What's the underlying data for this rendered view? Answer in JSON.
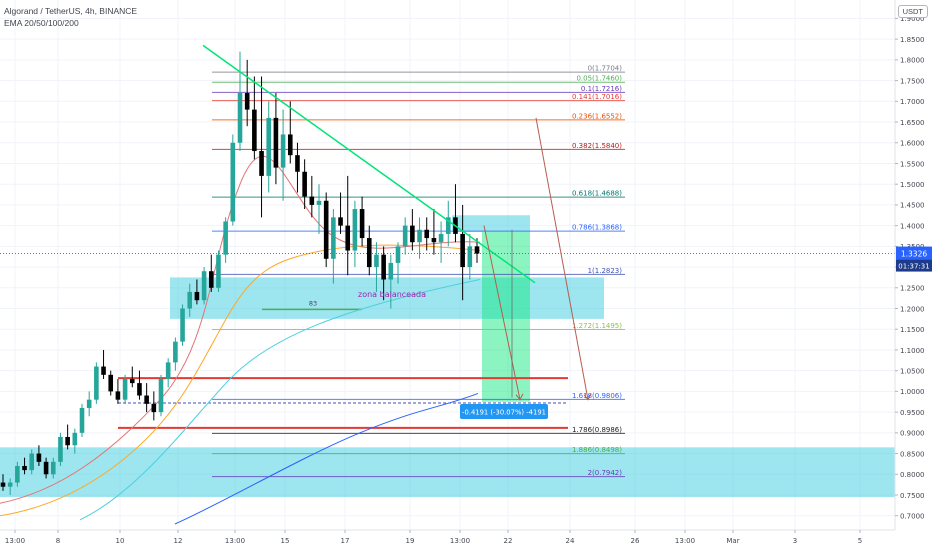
{
  "header": {
    "title": "Algorand / TetherUS, 4h, BINANCE",
    "indicator": "EMA 20/50/100/200",
    "currency": "USDT"
  },
  "chart_data": {
    "type": "candlestick",
    "title": "Algorand / TetherUS, 4h, BINANCE",
    "ylim": [
      0.68,
      1.93
    ],
    "y_ticks": [
      "1.9000",
      "1.8500",
      "1.8000",
      "1.7500",
      "1.7000",
      "1.6500",
      "1.6000",
      "1.5500",
      "1.5000",
      "1.4500",
      "1.4000",
      "1.3500",
      "1.3000",
      "1.2500",
      "1.2000",
      "1.1500",
      "1.1000",
      "1.0500",
      "1.0000",
      "0.9500",
      "0.9000",
      "0.8500",
      "0.8000",
      "0.7500",
      "0.7000"
    ],
    "x_ticks": [
      "13:00",
      "8",
      "10",
      "12",
      "13:00",
      "15",
      "17",
      "19",
      "13:00",
      "22",
      "24",
      "26",
      "13:00",
      "Mar",
      "3",
      "5"
    ],
    "price_label": "1.3326",
    "countdown_label": "01:37:31",
    "last_price": 1.3326,
    "fibonacci": [
      {
        "label": "0(1.7704)",
        "value": 1.7704,
        "color": "#787b86"
      },
      {
        "label": "0.05(1.7460)",
        "value": 1.746,
        "color": "#4caf50"
      },
      {
        "label": "0.1(1.7216)",
        "value": 1.7216,
        "color": "#673ab7"
      },
      {
        "label": "0.141(1.7016)",
        "value": 1.7016,
        "color": "#e53935"
      },
      {
        "label": "0.236(1.6552)",
        "value": 1.6552,
        "color": "#e65100"
      },
      {
        "label": "0.382(1.5840)",
        "value": 1.584,
        "color": "#b71c1c"
      },
      {
        "label": "0.618(1.4688)",
        "value": 1.4688,
        "color": "#00796b"
      },
      {
        "label": "0.786(1.3868)",
        "value": 1.3868,
        "color": "#2962ff"
      },
      {
        "label": "1(1.2823)",
        "value": 1.2823,
        "color": "#3f51b5"
      },
      {
        "label": "1.272(1.1495)",
        "value": 1.1495,
        "color": "#8bc34a"
      },
      {
        "label": "1.618(0.9806)",
        "value": 0.9806,
        "color": "#2962ff"
      },
      {
        "label": "1.786(0.8986)",
        "value": 0.8986,
        "color": "#212121"
      },
      {
        "label": "1.886(0.8498)",
        "value": 0.8498,
        "color": "#4caf50"
      },
      {
        "label": "2(0.7942)",
        "value": 0.7942,
        "color": "#673ab7"
      }
    ],
    "annotations": {
      "zone_label": "zona balanceada",
      "small_label": "83",
      "measure_label": "-0.4191 (-30.07%) -4191"
    },
    "candles": [
      [
        0.78,
        0.8,
        0.76,
        0.77
      ],
      [
        0.77,
        0.79,
        0.75,
        0.78
      ],
      [
        0.78,
        0.83,
        0.77,
        0.82
      ],
      [
        0.82,
        0.84,
        0.8,
        0.81
      ],
      [
        0.81,
        0.86,
        0.8,
        0.85
      ],
      [
        0.85,
        0.87,
        0.82,
        0.83
      ],
      [
        0.83,
        0.84,
        0.79,
        0.8
      ],
      [
        0.8,
        0.84,
        0.79,
        0.83
      ],
      [
        0.83,
        0.9,
        0.82,
        0.89
      ],
      [
        0.89,
        0.92,
        0.86,
        0.87
      ],
      [
        0.87,
        0.91,
        0.85,
        0.9
      ],
      [
        0.9,
        0.97,
        0.89,
        0.96
      ],
      [
        0.96,
        1.0,
        0.94,
        0.98
      ],
      [
        0.98,
        1.07,
        0.97,
        1.06
      ],
      [
        1.06,
        1.1,
        1.03,
        1.04
      ],
      [
        1.04,
        1.05,
        0.99,
        1.0
      ],
      [
        1.0,
        1.03,
        0.97,
        0.98
      ],
      [
        0.98,
        1.04,
        0.97,
        1.03
      ],
      [
        1.03,
        1.06,
        1.01,
        1.02
      ],
      [
        1.02,
        1.05,
        0.98,
        0.99
      ],
      [
        0.99,
        1.02,
        0.95,
        0.97
      ],
      [
        0.97,
        1.0,
        0.93,
        0.95
      ],
      [
        0.95,
        1.04,
        0.94,
        1.03
      ],
      [
        1.03,
        1.08,
        1.01,
        1.07
      ],
      [
        1.07,
        1.13,
        1.05,
        1.12
      ],
      [
        1.12,
        1.21,
        1.11,
        1.2
      ],
      [
        1.2,
        1.26,
        1.18,
        1.24
      ],
      [
        1.24,
        1.27,
        1.21,
        1.22
      ],
      [
        1.22,
        1.3,
        1.21,
        1.29
      ],
      [
        1.29,
        1.33,
        1.24,
        1.25
      ],
      [
        1.25,
        1.34,
        1.24,
        1.33
      ],
      [
        1.33,
        1.42,
        1.31,
        1.41
      ],
      [
        1.41,
        1.62,
        1.4,
        1.6
      ],
      [
        1.6,
        1.82,
        1.58,
        1.72
      ],
      [
        1.72,
        1.8,
        1.64,
        1.68
      ],
      [
        1.68,
        1.76,
        1.56,
        1.58
      ],
      [
        1.58,
        1.76,
        1.42,
        1.52
      ],
      [
        1.52,
        1.7,
        1.48,
        1.66
      ],
      [
        1.66,
        1.72,
        1.5,
        1.54
      ],
      [
        1.54,
        1.68,
        1.46,
        1.62
      ],
      [
        1.62,
        1.7,
        1.55,
        1.57
      ],
      [
        1.57,
        1.6,
        1.48,
        1.53
      ],
      [
        1.53,
        1.56,
        1.44,
        1.47
      ],
      [
        1.47,
        1.52,
        1.42,
        1.45
      ],
      [
        1.45,
        1.5,
        1.38,
        1.46
      ],
      [
        1.46,
        1.48,
        1.3,
        1.32
      ],
      [
        1.32,
        1.44,
        1.26,
        1.42
      ],
      [
        1.42,
        1.48,
        1.38,
        1.4
      ],
      [
        1.4,
        1.52,
        1.28,
        1.34
      ],
      [
        1.34,
        1.46,
        1.3,
        1.44
      ],
      [
        1.44,
        1.47,
        1.35,
        1.37
      ],
      [
        1.37,
        1.4,
        1.28,
        1.3
      ],
      [
        1.3,
        1.36,
        1.24,
        1.33
      ],
      [
        1.33,
        1.35,
        1.22,
        1.27
      ],
      [
        1.27,
        1.33,
        1.2,
        1.31
      ],
      [
        1.31,
        1.36,
        1.26,
        1.35
      ],
      [
        1.35,
        1.42,
        1.33,
        1.4
      ],
      [
        1.4,
        1.44,
        1.34,
        1.36
      ],
      [
        1.36,
        1.42,
        1.32,
        1.39
      ],
      [
        1.39,
        1.42,
        1.34,
        1.37
      ],
      [
        1.37,
        1.44,
        1.33,
        1.36
      ],
      [
        1.36,
        1.41,
        1.31,
        1.38
      ],
      [
        1.38,
        1.46,
        1.35,
        1.42
      ],
      [
        1.42,
        1.5,
        1.36,
        1.38
      ],
      [
        1.38,
        1.45,
        1.22,
        1.3
      ],
      [
        1.3,
        1.38,
        1.27,
        1.35
      ],
      [
        1.35,
        1.37,
        1.31,
        1.3326
      ]
    ]
  }
}
